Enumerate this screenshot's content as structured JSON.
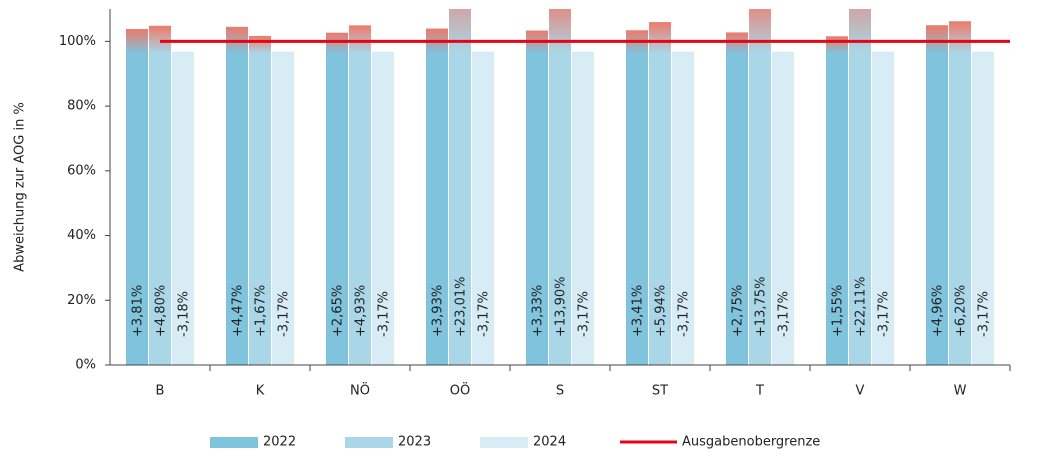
{
  "chart_data": {
    "type": "bar",
    "y_axis_label": "Abweichung zur AOG in %",
    "categories": [
      "B",
      "K",
      "NÖ",
      "OÖ",
      "S",
      "ST",
      "T",
      "V",
      "W"
    ],
    "series": [
      {
        "name": "2022",
        "color": "#7fc3dc",
        "values": [
          3.81,
          4.47,
          2.65,
          3.93,
          3.33,
          3.41,
          2.75,
          1.55,
          4.96
        ],
        "value_labels": [
          "+3,81%",
          "+4,47%",
          "+2,65%",
          "+3,93%",
          "+3,33%",
          "+3,41%",
          "+2,75%",
          "+1,55%",
          "+4,96%"
        ]
      },
      {
        "name": "2023",
        "color": "#a9d7e8",
        "values": [
          4.8,
          1.67,
          4.93,
          23.01,
          13.9,
          5.94,
          13.75,
          22.11,
          6.2
        ],
        "value_labels": [
          "+4,80%",
          "+1,67%",
          "+4,93%",
          "+23,01%",
          "+13,90%",
          "+5,94%",
          "+13,75%",
          "+22,11%",
          "+6,20%"
        ]
      },
      {
        "name": "2024",
        "color": "#d7ecf4",
        "values": [
          -3.18,
          -3.17,
          -3.17,
          -3.17,
          -3.17,
          -3.17,
          -3.17,
          -3.17,
          -3.17
        ],
        "value_labels": [
          "-3,18%",
          "-3,17%",
          "-3,17%",
          "-3,17%",
          "-3,17%",
          "-3,17%",
          "-3,17%",
          "-3,17%",
          "-3,17%"
        ]
      }
    ],
    "limit": {
      "name": "Ausgabenobergrenze",
      "color": "#e30613",
      "value": 100
    },
    "overrun_color": "#ef7a6a",
    "ylim": [
      0,
      110
    ],
    "yticks": [
      {
        "value": 0,
        "label": "0%"
      },
      {
        "value": 20,
        "label": "20%"
      },
      {
        "value": 40,
        "label": "40%"
      },
      {
        "value": 60,
        "label": "60%"
      },
      {
        "value": 80,
        "label": "80%"
      },
      {
        "value": 100,
        "label": "100%"
      }
    ]
  }
}
